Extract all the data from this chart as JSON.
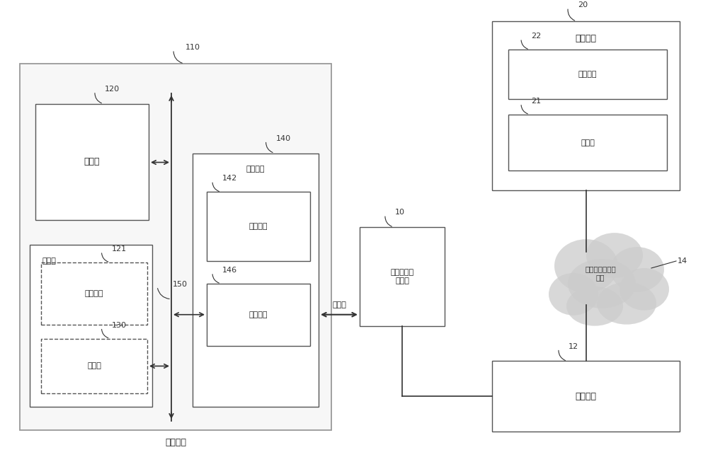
{
  "bg_color": "#ffffff",
  "labels": {
    "110": "110",
    "120": "120",
    "121": "121",
    "130": "130",
    "140": "140",
    "142": "142",
    "146": "146",
    "150": "150",
    "10": "10",
    "12": "12",
    "14": "14",
    "20": "20",
    "21": "21",
    "22": "22"
  },
  "chinese": {
    "processor": "处理器",
    "memory": "存储器",
    "app": "应用程序",
    "protocol": "协议栈",
    "comm_if": "通信接口",
    "tx_circuit": "发射电路",
    "rx_circuit": "接收电路",
    "data_packet": "数据包",
    "access_point": "接入点（如\n基站）",
    "wan": "广域网（如因特\n网）",
    "wireless_gw": "无线网关",
    "rx_node": "接收节点",
    "tx_node": "发送节点"
  },
  "ec": "#555555",
  "dc": "#555555",
  "lc": "#333333"
}
